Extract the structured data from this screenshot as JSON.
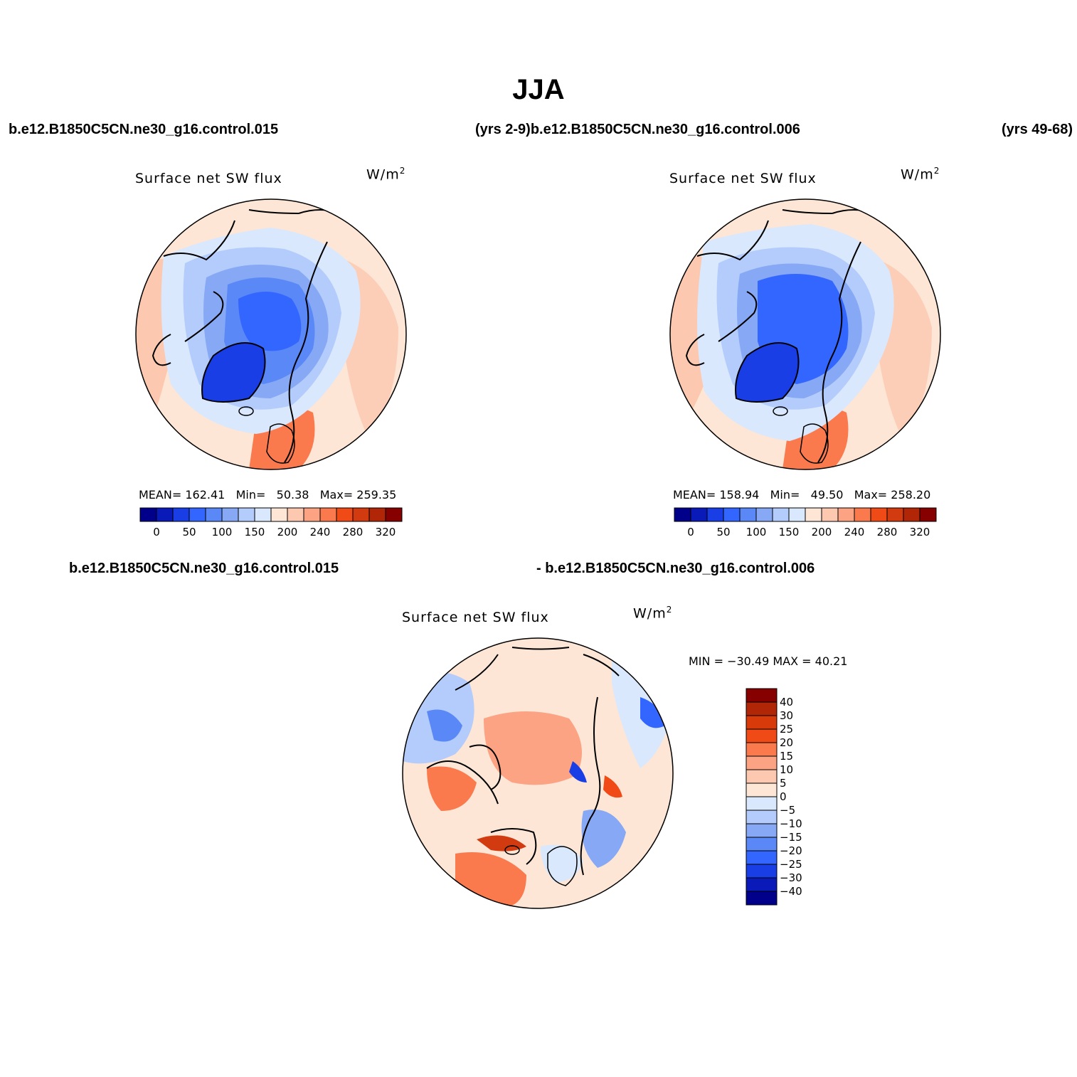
{
  "main_title": "JJA",
  "case_labels": {
    "top_left": "b.e12.B1850C5CN.ne30_g16.control.015",
    "top_mid": "(yrs 2-9)b.e12.B1850C5CN.ne30_g16.control.006",
    "top_right": "(yrs 49-68)",
    "bottom_left": "b.e12.B1850C5CN.ne30_g16.control.015",
    "bottom_right": "- b.e12.B1850C5CN.ne30_g16.control.006"
  },
  "panels": [
    {
      "title": "Surface net SW flux",
      "units_base": "W/m",
      "units_exp": "2",
      "stats": {
        "mean_label": "MEAN=",
        "mean": "162.41",
        "min_label": "Min=",
        "min": "50.38",
        "max_label": "Max=",
        "max": "259.35"
      },
      "colorbar_ticks": [
        "0",
        "50",
        "100",
        "150",
        "200",
        "240",
        "280",
        "320"
      ]
    },
    {
      "title": "Surface net SW flux",
      "units_base": "W/m",
      "units_exp": "2",
      "stats": {
        "mean_label": "MEAN=",
        "mean": "158.94",
        "min_label": "Min=",
        "min": "49.50",
        "max_label": "Max=",
        "max": "258.20"
      },
      "colorbar_ticks": [
        "0",
        "50",
        "100",
        "150",
        "200",
        "240",
        "280",
        "320"
      ]
    },
    {
      "title": "Surface net SW flux",
      "units_base": "W/m",
      "units_exp": "2",
      "stats_text": "MIN = −30.49  MAX =   40.21",
      "colorbar_ticks": [
        "40",
        "30",
        "25",
        "20",
        "15",
        "10",
        "5",
        "0",
        "−5",
        "−10",
        "−15",
        "−20",
        "−25",
        "−30",
        "−40"
      ]
    }
  ],
  "colors": {
    "abs_scale": [
      "#00008b",
      "#0a1ab8",
      "#1a3ee6",
      "#3366ff",
      "#5a88f7",
      "#86a8f5",
      "#b3ccfb",
      "#d9e8fd",
      "#fde6d6",
      "#fcc8af",
      "#fca383",
      "#fa7a4e",
      "#f04a16",
      "#d23a0f",
      "#b02606",
      "#870000"
    ],
    "diff_scale": [
      "#870000",
      "#b02606",
      "#d93a0a",
      "#f04a16",
      "#fa7a4e",
      "#fca383",
      "#fcc8af",
      "#fde6d6",
      "#d9e8fd",
      "#b3ccfb",
      "#86a8f5",
      "#5a88f7",
      "#3366ff",
      "#1a3ee6",
      "#0a1ab8",
      "#00008b"
    ]
  }
}
